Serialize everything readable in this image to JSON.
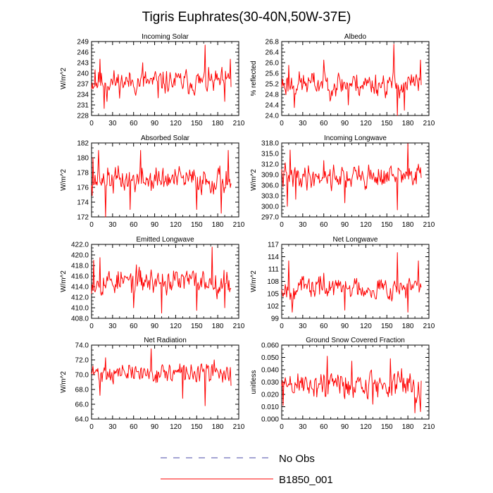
{
  "title": "Tigris Euphrates(30-40N,50W-37E)",
  "colors": {
    "model": "#ff0000",
    "obs": "#4a4aa8",
    "axis": "#000000"
  },
  "legend": [
    {
      "label": "No Obs",
      "style": "dashed",
      "color": "#4a4aa8"
    },
    {
      "label": "B1850_001",
      "style": "solid",
      "color": "#ff0000"
    }
  ],
  "chart_data": [
    {
      "type": "line",
      "title": "Incoming Solar",
      "ylabel": "W/m^2",
      "xlim": [
        0,
        210
      ],
      "ylim": [
        228,
        249
      ],
      "xticks": [
        "0",
        "30",
        "60",
        "90",
        "120",
        "150",
        "180",
        "210"
      ],
      "yticks": [
        "249",
        "246",
        "243",
        "240",
        "237",
        "234",
        "231",
        "228"
      ],
      "series": [
        {
          "name": "B1850_001",
          "base": 237.5,
          "amp": 2.4,
          "seed": 11,
          "spikes": [
            [
              5,
              241
            ],
            [
              12,
              244
            ],
            [
              18,
              230
            ],
            [
              22,
              232
            ],
            [
              73,
              243
            ],
            [
              95,
              233
            ],
            [
              162,
              248
            ],
            [
              190,
              232
            ],
            [
              198,
              244
            ]
          ]
        }
      ]
    },
    {
      "type": "line",
      "title": "Albedo",
      "ylabel": "% reflected",
      "xlim": [
        0,
        210
      ],
      "ylim": [
        24.0,
        26.8
      ],
      "xticks": [
        "0",
        "30",
        "60",
        "90",
        "120",
        "150",
        "180",
        "210"
      ],
      "yticks": [
        "26.8",
        "26.4",
        "26.0",
        "25.6",
        "25.2",
        "24.8",
        "24.4",
        "24.0"
      ],
      "series": [
        {
          "name": "B1850_001",
          "base": 25.2,
          "amp": 0.33,
          "seed": 23,
          "spikes": [
            [
              10,
              25.9
            ],
            [
              18,
              24.3
            ],
            [
              60,
              26.1
            ],
            [
              95,
              24.4
            ],
            [
              160,
              26.7
            ],
            [
              165,
              24.0
            ],
            [
              175,
              24.2
            ],
            [
              198,
              26.1
            ]
          ]
        }
      ]
    },
    {
      "type": "line",
      "title": "Absorbed Solar",
      "ylabel": "W/m^2",
      "xlim": [
        0,
        210
      ],
      "ylim": [
        172,
        182
      ],
      "xticks": [
        "0",
        "30",
        "60",
        "90",
        "120",
        "150",
        "180",
        "210"
      ],
      "yticks": [
        "182",
        "180",
        "178",
        "176",
        "174",
        "172"
      ],
      "series": [
        {
          "name": "B1850_001",
          "base": 177,
          "amp": 1.25,
          "seed": 37,
          "spikes": [
            [
              2,
              180
            ],
            [
              10,
              181
            ],
            [
              20,
              172
            ],
            [
              55,
              173
            ],
            [
              70,
              181
            ],
            [
              150,
              173
            ],
            [
              185,
              172.5
            ],
            [
              195,
              181
            ]
          ]
        }
      ]
    },
    {
      "type": "line",
      "title": "Incoming Longwave",
      "ylabel": "W/m^2",
      "xlim": [
        0,
        210
      ],
      "ylim": [
        297.0,
        318.0
      ],
      "xticks": [
        "0",
        "30",
        "60",
        "90",
        "120",
        "150",
        "180",
        "210"
      ],
      "yticks": [
        "318.0",
        "315.0",
        "312.0",
        "309.0",
        "306.0",
        "303.0",
        "300.0",
        "297.0"
      ],
      "series": [
        {
          "name": "B1850_001",
          "base": 308.5,
          "amp": 2.4,
          "seed": 41,
          "spikes": [
            [
              8,
              300
            ],
            [
              12,
              316
            ],
            [
              20,
              302
            ],
            [
              60,
              313
            ],
            [
              90,
              301
            ],
            [
              165,
              299
            ],
            [
              180,
              317.8
            ],
            [
              195,
              312
            ]
          ]
        }
      ]
    },
    {
      "type": "line",
      "title": "Emitted Longwave",
      "ylabel": "W/m^2",
      "xlim": [
        0,
        210
      ],
      "ylim": [
        408.0,
        422.0
      ],
      "xticks": [
        "0",
        "30",
        "60",
        "90",
        "120",
        "150",
        "180",
        "210"
      ],
      "yticks": [
        "422.0",
        "420.0",
        "418.0",
        "416.0",
        "414.0",
        "412.0",
        "410.0",
        "408.0"
      ],
      "series": [
        {
          "name": "B1850_001",
          "base": 415,
          "amp": 1.7,
          "seed": 53,
          "spikes": [
            [
              3,
              419
            ],
            [
              5,
              413
            ],
            [
              12,
              419.5
            ],
            [
              60,
              410
            ],
            [
              100,
              409
            ],
            [
              150,
              409.5
            ],
            [
              172,
              421.5
            ],
            [
              190,
              410
            ]
          ]
        }
      ]
    },
    {
      "type": "line",
      "title": "Net Longwave",
      "ylabel": "W/m^2",
      "xlim": [
        0,
        210
      ],
      "ylim": [
        99,
        117
      ],
      "xticks": [
        "0",
        "30",
        "60",
        "90",
        "120",
        "150",
        "180",
        "210"
      ],
      "yticks": [
        "117",
        "114",
        "111",
        "108",
        "105",
        "102",
        "99"
      ],
      "series": [
        {
          "name": "B1850_001",
          "base": 106.5,
          "amp": 1.9,
          "seed": 67,
          "spikes": [
            [
              10,
              113
            ],
            [
              15,
              100.5
            ],
            [
              60,
              110
            ],
            [
              90,
              101
            ],
            [
              165,
              115
            ],
            [
              180,
              100.5
            ],
            [
              195,
              113
            ]
          ]
        }
      ]
    },
    {
      "type": "line",
      "title": "Net Radiation",
      "ylabel": "W/m^2",
      "xlim": [
        0,
        210
      ],
      "ylim": [
        64.0,
        74.0
      ],
      "xticks": [
        "0",
        "30",
        "60",
        "90",
        "120",
        "150",
        "180",
        "210"
      ],
      "yticks": [
        "74.0",
        "72.0",
        "70.0",
        "68.0",
        "66.0",
        "64.0"
      ],
      "series": [
        {
          "name": "B1850_001",
          "base": 70.2,
          "amp": 0.9,
          "seed": 71,
          "spikes": [
            [
              12,
              67.2
            ],
            [
              20,
              72.3
            ],
            [
              85,
              73.5
            ],
            [
              130,
              66.8
            ],
            [
              162,
              65.8
            ],
            [
              175,
              72
            ],
            [
              199,
              68.5
            ]
          ]
        }
      ]
    },
    {
      "type": "line",
      "title": "Ground Snow Covered Fraction",
      "ylabel": "unitless",
      "xlim": [
        0,
        210
      ],
      "ylim": [
        0.0,
        0.06
      ],
      "xticks": [
        "0",
        "30",
        "60",
        "90",
        "120",
        "150",
        "180",
        "210"
      ],
      "yticks": [
        "0.060",
        "0.050",
        "0.040",
        "0.030",
        "0.020",
        "0.010",
        "0.000"
      ],
      "series": [
        {
          "name": "B1850_001",
          "base": 0.028,
          "amp": 0.0085,
          "seed": 89,
          "spikes": [
            [
              2,
              0.011
            ],
            [
              65,
              0.051
            ],
            [
              100,
              0.047
            ],
            [
              130,
              0.012
            ],
            [
              155,
              0.049
            ],
            [
              190,
              0.005
            ],
            [
              198,
              0.006
            ]
          ]
        }
      ]
    }
  ]
}
